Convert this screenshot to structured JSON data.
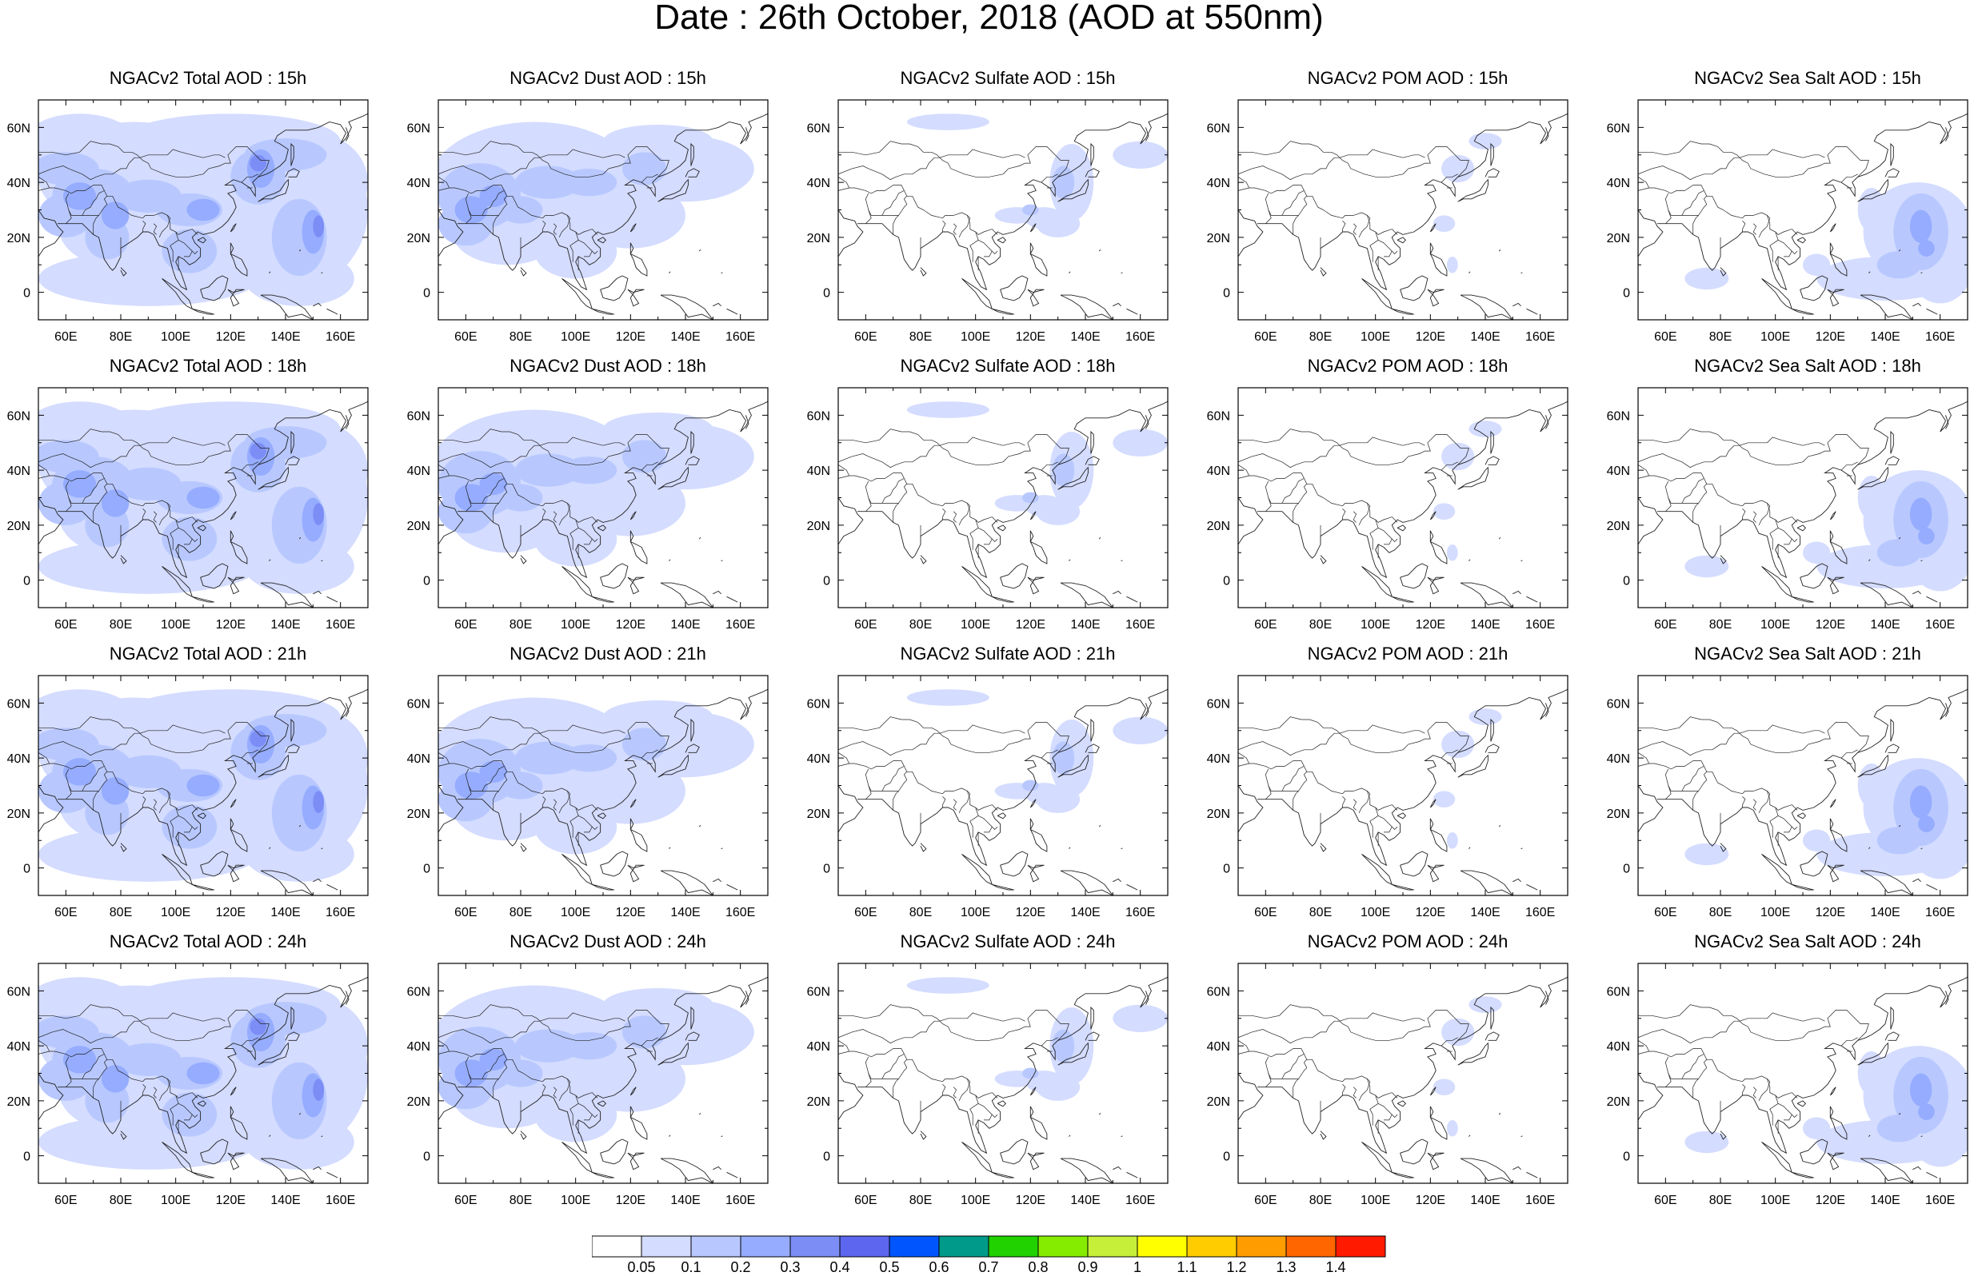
{
  "figure_title": "Date : 26th October, 2018 (AOD at 550nm)",
  "panels": [
    {
      "title": "NGACv2 Total AOD : 15h",
      "species": "total"
    },
    {
      "title": "NGACv2 Dust AOD : 15h",
      "species": "dust"
    },
    {
      "title": "NGACv2 Sulfate AOD : 15h",
      "species": "sulfate"
    },
    {
      "title": "NGACv2 POM AOD : 15h",
      "species": "pom"
    },
    {
      "title": "NGACv2 Sea Salt AOD : 15h",
      "species": "seasalt"
    },
    {
      "title": "NGACv2 Total AOD : 18h",
      "species": "total"
    },
    {
      "title": "NGACv2 Dust AOD : 18h",
      "species": "dust"
    },
    {
      "title": "NGACv2 Sulfate AOD : 18h",
      "species": "sulfate"
    },
    {
      "title": "NGACv2 POM AOD : 18h",
      "species": "pom"
    },
    {
      "title": "NGACv2 Sea Salt AOD : 18h",
      "species": "seasalt"
    },
    {
      "title": "NGACv2 Total AOD : 21h",
      "species": "total"
    },
    {
      "title": "NGACv2 Dust AOD : 21h",
      "species": "dust"
    },
    {
      "title": "NGACv2 Sulfate AOD : 21h",
      "species": "sulfate"
    },
    {
      "title": "NGACv2 POM AOD : 21h",
      "species": "pom"
    },
    {
      "title": "NGACv2 Sea Salt AOD : 21h",
      "species": "seasalt"
    },
    {
      "title": "NGACv2 Total AOD : 24h",
      "species": "total"
    },
    {
      "title": "NGACv2 Dust AOD : 24h",
      "species": "dust"
    },
    {
      "title": "NGACv2 Sulfate AOD : 24h",
      "species": "sulfate"
    },
    {
      "title": "NGACv2 POM AOD : 24h",
      "species": "pom"
    },
    {
      "title": "NGACv2 Sea Salt  AOD : 24h",
      "species": "seasalt"
    }
  ],
  "lon_ticks": [
    "60E",
    "80E",
    "100E",
    "120E",
    "140E",
    "160E"
  ],
  "lat_ticks": [
    "60N",
    "40N",
    "20N",
    "0"
  ],
  "colorbar": {
    "labels": [
      "0.05",
      "0.1",
      "0.2",
      "0.3",
      "0.4",
      "0.5",
      "0.6",
      "0.7",
      "0.8",
      "0.9",
      "1",
      "1.1",
      "1.2",
      "1.3",
      "1.4"
    ],
    "colors": [
      "#ffffff",
      "#d4dcff",
      "#b8c8ff",
      "#95acff",
      "#7c8ef5",
      "#5c66ee",
      "#0055ff",
      "#009a8a",
      "#22d100",
      "#85ec00",
      "#c6ef3a",
      "#ffff00",
      "#ffcc00",
      "#ff9d00",
      "#ff6600",
      "#ff1a00"
    ]
  }
}
